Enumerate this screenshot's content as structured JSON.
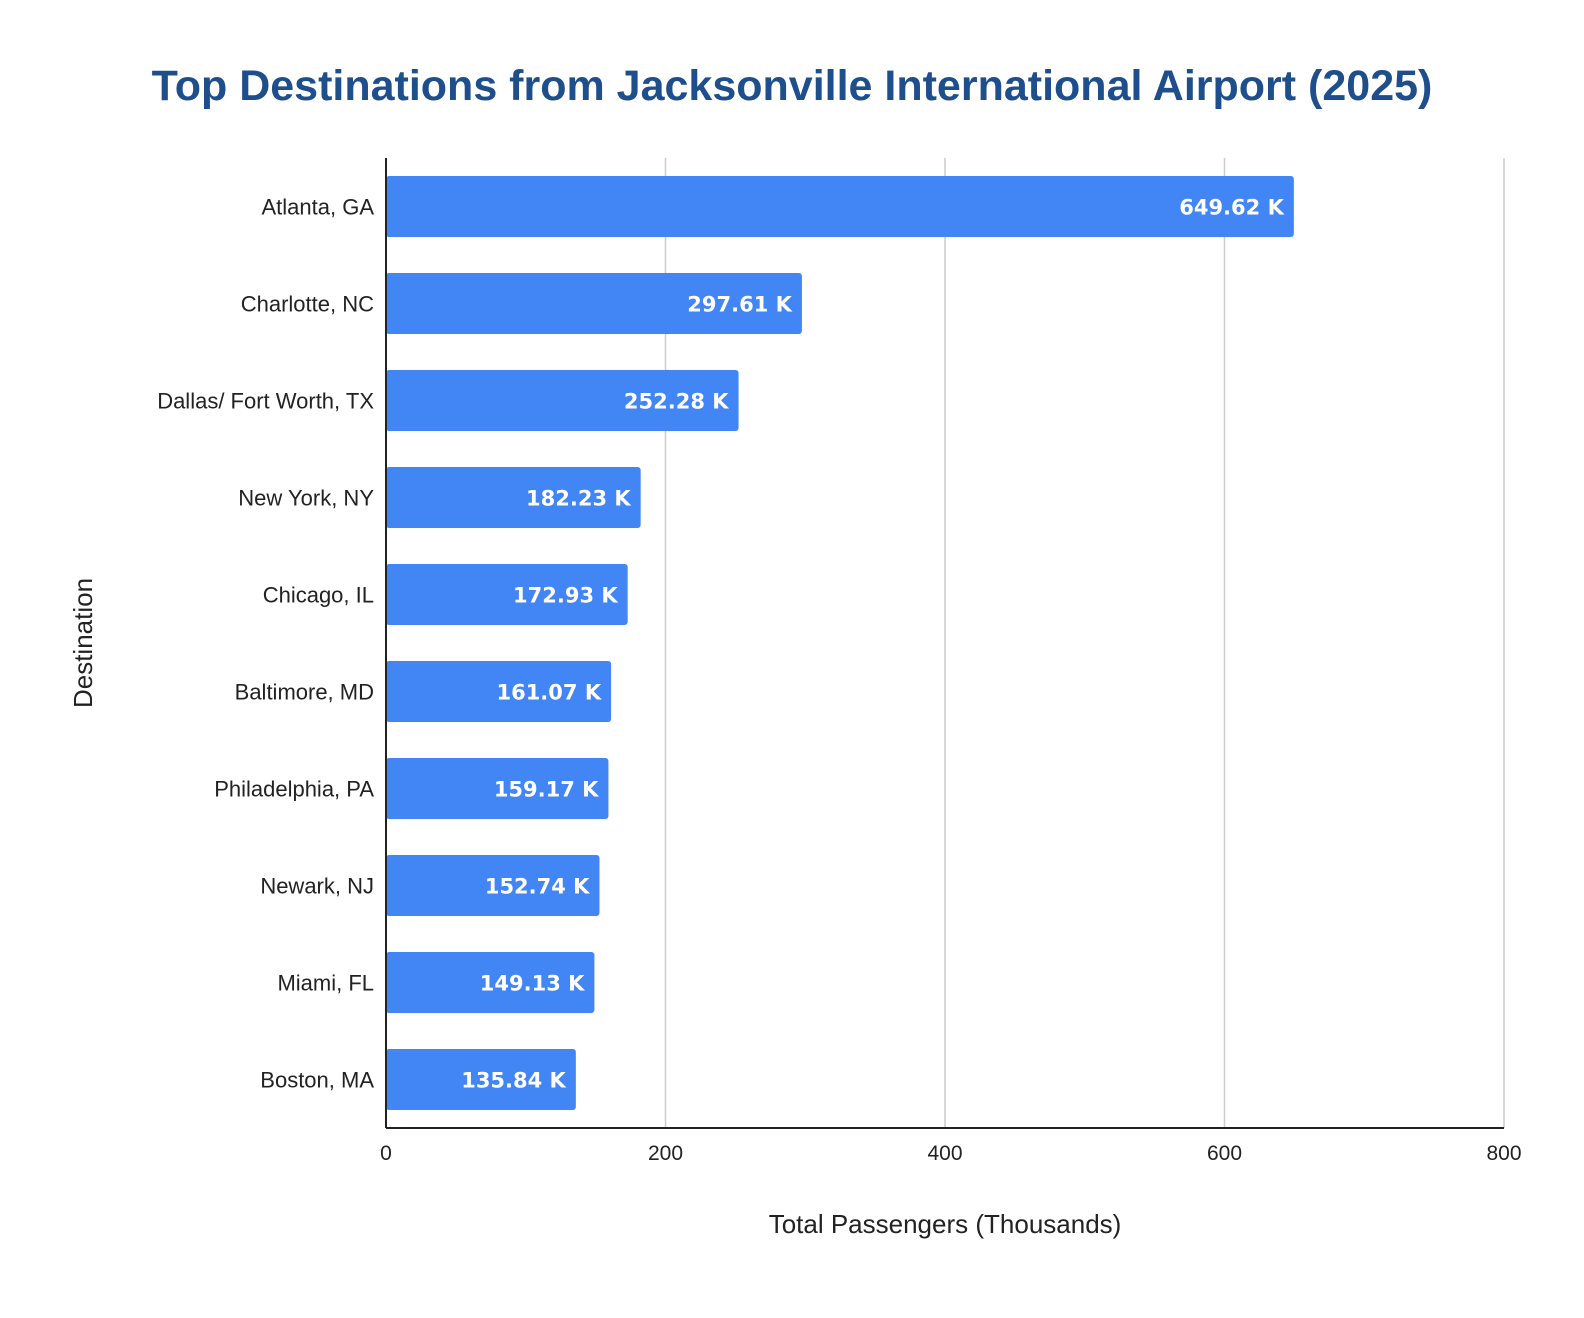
{
  "chart_data": {
    "type": "bar",
    "orientation": "horizontal",
    "title": "Top Destinations from Jacksonville International Airport (2025)",
    "xlabel": "Total Passengers (Thousands)",
    "ylabel": "Destination",
    "categories": [
      "Atlanta, GA",
      "Charlotte, NC",
      "Dallas/ Fort Worth, TX",
      "New York, NY",
      "Chicago, IL",
      "Baltimore, MD",
      "Philadelphia, PA",
      "Newark, NJ",
      "Miami, FL",
      "Boston, MA"
    ],
    "values": [
      649.62,
      297.61,
      252.28,
      182.23,
      172.93,
      161.07,
      159.17,
      152.74,
      149.13,
      135.84
    ],
    "data_labels": [
      "649.62 K",
      "297.61 K",
      "252.28 K",
      "182.23 K",
      "172.93 K",
      "161.07 K",
      "159.17 K",
      "152.74 K",
      "149.13 K",
      "135.84 K"
    ],
    "xlim": [
      0,
      800
    ],
    "xticks": [
      0,
      200,
      400,
      600,
      800
    ],
    "xtick_labels": [
      "0",
      "200",
      "400",
      "600",
      "800"
    ],
    "grid": "vertical",
    "legend": "none",
    "colors": {
      "bar": "#4285f4",
      "title": "#1f4e8c",
      "grid": "#cccccc",
      "axis": "#222222"
    }
  }
}
